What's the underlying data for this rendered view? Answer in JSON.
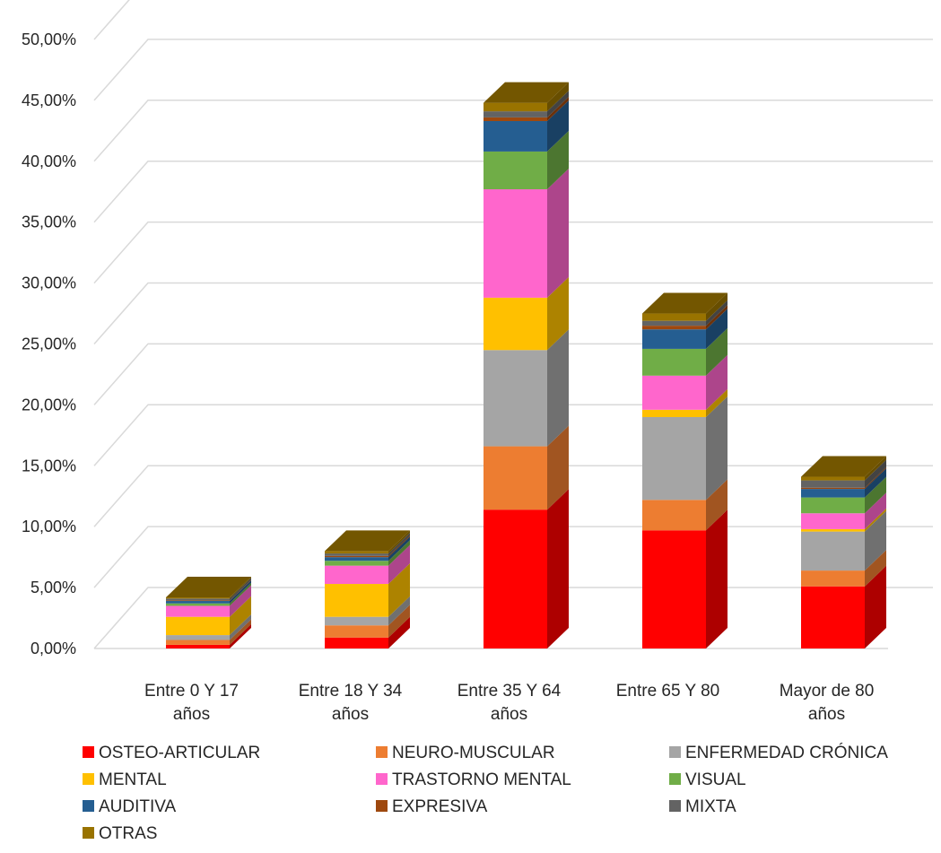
{
  "chart_data": {
    "type": "bar",
    "stacked": true,
    "style": "3d-stacked-column",
    "categories": [
      [
        "Entre 0 Y 17",
        "años"
      ],
      [
        "Entre 18 Y 34",
        "años"
      ],
      [
        "Entre 35 Y 64",
        "años"
      ],
      [
        "Entre 65 Y 80",
        ""
      ],
      [
        "Mayor de 80",
        "años"
      ]
    ],
    "y_ticks": [
      "0,00%",
      "5,00%",
      "10,00%",
      "15,00%",
      "20,00%",
      "25,00%",
      "30,00%",
      "35,00%",
      "40,00%",
      "45,00%",
      "50,00%"
    ],
    "ylim": [
      0,
      50
    ],
    "y_unit": "%",
    "grid": true,
    "legend_position": "bottom",
    "series": [
      {
        "name": "OSTEO-ARTICULAR",
        "color": "#FF0000",
        "values": [
          0.3,
          0.9,
          11.4,
          9.7,
          5.1
        ]
      },
      {
        "name": "NEURO-MUSCULAR",
        "color": "#ED7D31",
        "values": [
          0.4,
          1.0,
          5.2,
          2.5,
          1.3
        ]
      },
      {
        "name": "ENFERMEDAD CRÓNICA",
        "color": "#A5A5A5",
        "values": [
          0.4,
          0.7,
          7.9,
          6.8,
          3.2
        ]
      },
      {
        "name": "MENTAL",
        "color": "#FFC000",
        "values": [
          1.5,
          2.7,
          4.3,
          0.6,
          0.2
        ]
      },
      {
        "name": "TRASTORNO MENTAL",
        "color": "#FF66CC",
        "values": [
          0.9,
          1.5,
          8.9,
          2.8,
          1.3
        ]
      },
      {
        "name": "VISUAL",
        "color": "#70AD47",
        "values": [
          0.2,
          0.4,
          3.1,
          2.2,
          1.3
        ]
      },
      {
        "name": "AUDITIVA",
        "color": "#255E91",
        "values": [
          0.2,
          0.3,
          2.5,
          1.6,
          0.7
        ]
      },
      {
        "name": "EXPRESIVA",
        "color": "#9E480E",
        "values": [
          0.05,
          0.1,
          0.3,
          0.3,
          0.1
        ]
      },
      {
        "name": "MIXTA",
        "color": "#636363",
        "values": [
          0.15,
          0.2,
          0.5,
          0.4,
          0.6
        ]
      },
      {
        "name": "OTRAS",
        "color": "#997300",
        "values": [
          0.1,
          0.2,
          0.7,
          0.6,
          0.3
        ]
      }
    ]
  }
}
